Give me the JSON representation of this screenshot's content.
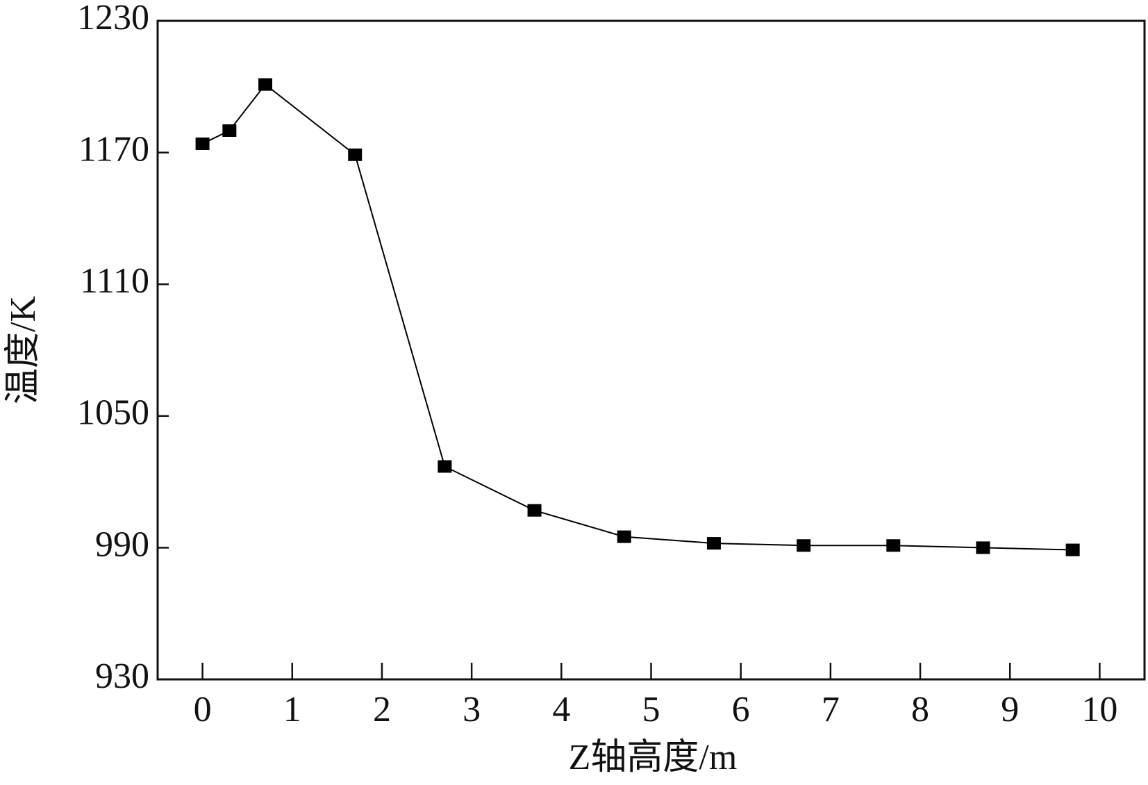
{
  "chart_data": {
    "type": "line",
    "x_label": "Z轴高度/m",
    "y_label": "温度/K",
    "series": [
      {
        "color": "#000000",
        "marker": "square",
        "x": [
          0,
          0.3,
          0.7,
          1.7,
          2.7,
          3.7,
          4.7,
          5.7,
          6.7,
          7.7,
          8.7,
          9.7
        ],
        "values": [
          1174,
          1180,
          1201,
          1169,
          1027,
          1007,
          995,
          992,
          991,
          991,
          990,
          989
        ]
      }
    ],
    "xlim": [
      -0.5,
      10.5
    ],
    "xticks": [
      0,
      1,
      2,
      3,
      4,
      5,
      6,
      7,
      8,
      9,
      10
    ],
    "ylim": [
      930,
      1230
    ],
    "yticks": [
      930,
      990,
      1050,
      1110,
      1170,
      1230
    ],
    "grid": false
  }
}
